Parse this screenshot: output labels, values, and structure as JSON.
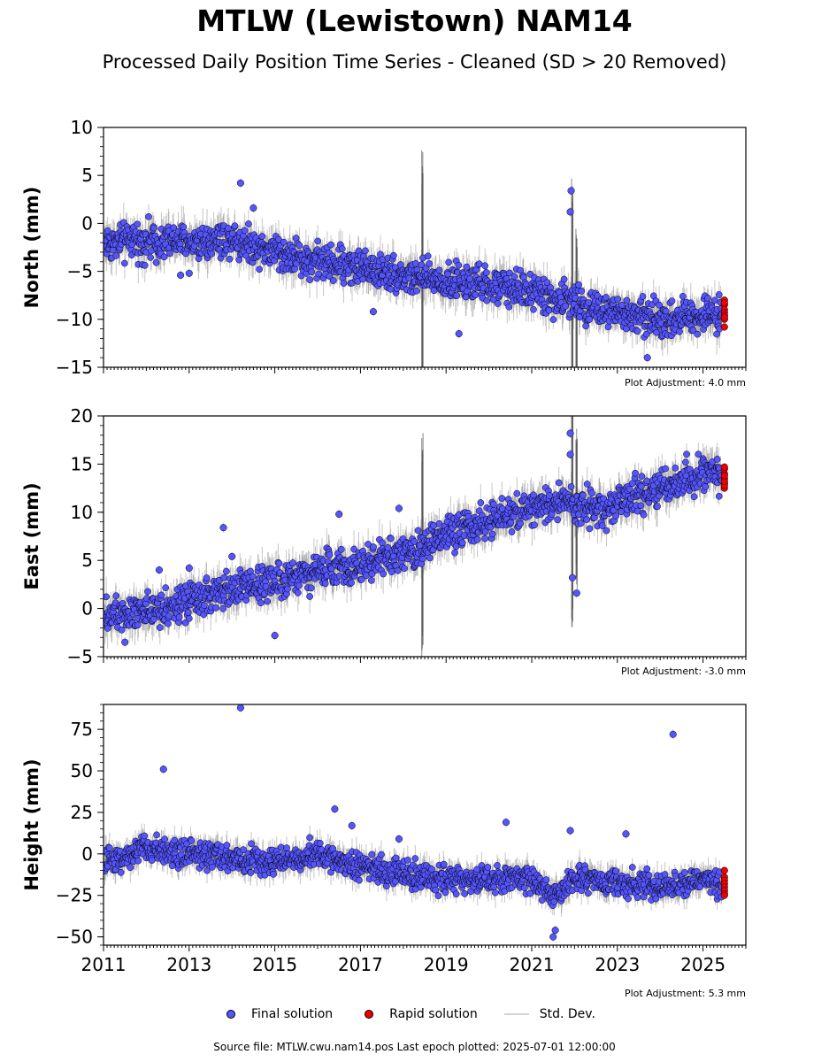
{
  "figure": {
    "title": "MTLW (Lewistown) NAM14",
    "subtitle": "Processed Daily Position Time Series - Cleaned (SD > 20 Removed)",
    "footer": "Source file: MTLW.cwu.nam14.pos  Last epoch plotted: 2025-07-01 12:00:00"
  },
  "legend": {
    "final": "Final solution",
    "rapid": "Rapid solution",
    "std": "Std. Dev."
  },
  "colors": {
    "final": "#5555ff",
    "rapid": "#ee0000",
    "std": "#808080",
    "marker_edge": "#000000"
  },
  "chart_data": [
    {
      "type": "scatter",
      "ylabel": "North (mm)",
      "ylim": [
        -15,
        10
      ],
      "yticks": [
        10,
        5,
        0,
        -5,
        -10,
        -15
      ],
      "ytick_labels": [
        "10",
        "5",
        "0",
        "−5",
        "−10",
        "−15"
      ],
      "xlim": [
        2011,
        2026
      ],
      "adjustment": "Plot Adjustment: 4.0 mm",
      "series": [
        {
          "name": "Final solution",
          "trend_x": [
            2011.0,
            2012.0,
            2013.0,
            2014.0,
            2015.0,
            2016.0,
            2017.0,
            2018.0,
            2019.0,
            2020.0,
            2021.0,
            2021.5,
            2022.0,
            2022.5,
            2023.0,
            2024.0,
            2025.0,
            2025.45
          ],
          "trend_y": [
            -2,
            -1.8,
            -2,
            -1.5,
            -3,
            -4,
            -4.5,
            -5.5,
            -6,
            -6.5,
            -7,
            -8,
            -8,
            -9,
            -9.5,
            -10,
            -9.5,
            -9.5
          ],
          "spread": 1.6,
          "outliers": [
            [
              2014.2,
              4.2
            ],
            [
              2014.5,
              1.6
            ],
            [
              2021.92,
              3.4
            ],
            [
              2021.9,
              1.2
            ],
            [
              2023.7,
              -14.0
            ],
            [
              2019.3,
              -11.5
            ],
            [
              2017.3,
              -9.2
            ],
            [
              2013.0,
              -5.2
            ],
            [
              2012.8,
              -5.4
            ]
          ]
        },
        {
          "name": "Rapid solution",
          "x": [
            2025.5,
            2025.5,
            2025.5,
            2025.5,
            2025.5,
            2025.5,
            2025.5,
            2025.5,
            2025.5
          ],
          "y": [
            -8.0,
            -8.5,
            -9.0,
            -9.3,
            -9.6,
            -10.0,
            -10.8,
            -8.3,
            -9.8
          ]
        }
      ],
      "std_spikes": [
        [
          2018.45,
          14
        ],
        [
          2021.95,
          14
        ],
        [
          2022.05,
          8
        ]
      ]
    },
    {
      "type": "scatter",
      "ylabel": "East (mm)",
      "ylim": [
        -5,
        20
      ],
      "yticks": [
        20,
        15,
        10,
        5,
        0,
        -5
      ],
      "ytick_labels": [
        "20",
        "15",
        "10",
        "5",
        "0",
        "−5"
      ],
      "xlim": [
        2011,
        2026
      ],
      "adjustment": "Plot Adjustment: -3.0 mm",
      "series": [
        {
          "name": "Final solution",
          "trend_x": [
            2011.0,
            2012.0,
            2013.0,
            2014.0,
            2015.0,
            2016.0,
            2017.0,
            2018.0,
            2018.6,
            2019.0,
            2020.0,
            2021.0,
            2022.0,
            2022.5,
            2023.0,
            2024.0,
            2025.0,
            2025.45
          ],
          "trend_y": [
            -0.5,
            0,
            0.5,
            2,
            3,
            4,
            4.5,
            5.5,
            6.5,
            8,
            9,
            10.5,
            11,
            10,
            11,
            12.5,
            14,
            13.5
          ],
          "spread": 1.6,
          "outliers": [
            [
              2013.0,
              4.2
            ],
            [
              2013.8,
              8.4
            ],
            [
              2016.5,
              9.8
            ],
            [
              2017.9,
              10.4
            ],
            [
              2014.0,
              5.4
            ],
            [
              2012.3,
              4.0
            ],
            [
              2021.9,
              18.2
            ],
            [
              2021.9,
              16.0
            ],
            [
              2021.95,
              3.2
            ],
            [
              2022.05,
              1.6
            ],
            [
              2015.0,
              -2.8
            ],
            [
              2011.5,
              -3.5
            ]
          ]
        },
        {
          "name": "Rapid solution",
          "x": [
            2025.5,
            2025.5,
            2025.5,
            2025.5,
            2025.5,
            2025.5,
            2025.5,
            2025.5,
            2025.5
          ],
          "y": [
            12.5,
            13.0,
            13.5,
            14.0,
            14.5,
            12.8,
            13.2,
            14.7,
            13.8
          ]
        }
      ],
      "std_spikes": [
        [
          2018.45,
          12
        ],
        [
          2021.95,
          14
        ],
        [
          2022.05,
          9
        ]
      ]
    },
    {
      "type": "scatter",
      "ylabel": "Height (mm)",
      "ylim": [
        -55,
        90
      ],
      "yticks": [
        75,
        50,
        25,
        0,
        -25,
        -50
      ],
      "ytick_labels": [
        "75",
        "50",
        "25",
        "0",
        "−25",
        "−50"
      ],
      "xlim": [
        2011,
        2026
      ],
      "xticks": [
        2011,
        2013,
        2015,
        2017,
        2019,
        2021,
        2023,
        2025
      ],
      "xtick_labels": [
        "2011",
        "2013",
        "2015",
        "2017",
        "2019",
        "2021",
        "2023",
        "2025"
      ],
      "adjustment": "Plot Adjustment: 5.3 mm",
      "series": [
        {
          "name": "Final solution",
          "trend_x": [
            2011.0,
            2012.0,
            2013.0,
            2014.0,
            2015.0,
            2016.0,
            2017.0,
            2018.0,
            2019.0,
            2020.0,
            2021.0,
            2021.5,
            2022.0,
            2023.0,
            2024.0,
            2025.0,
            2025.45
          ],
          "trend_y": [
            -5,
            3,
            0,
            -3,
            -5,
            0,
            -8,
            -12,
            -15,
            -15,
            -15,
            -25,
            -15,
            -18,
            -20,
            -15,
            -18
          ],
          "spread": 7,
          "outliers": [
            [
              2014.2,
              88
            ],
            [
              2012.4,
              51
            ],
            [
              2024.3,
              72
            ],
            [
              2016.4,
              27
            ],
            [
              2016.8,
              17
            ],
            [
              2017.9,
              9
            ],
            [
              2020.4,
              19
            ],
            [
              2021.9,
              14
            ],
            [
              2023.2,
              12
            ],
            [
              2021.5,
              -50
            ],
            [
              2021.55,
              -46
            ]
          ]
        },
        {
          "name": "Rapid solution",
          "x": [
            2025.5,
            2025.5,
            2025.5,
            2025.5,
            2025.5,
            2025.5,
            2025.5,
            2025.5
          ],
          "y": [
            -10,
            -14,
            -16,
            -18,
            -20,
            -22,
            -24,
            -25
          ]
        }
      ],
      "std_spikes": []
    }
  ]
}
